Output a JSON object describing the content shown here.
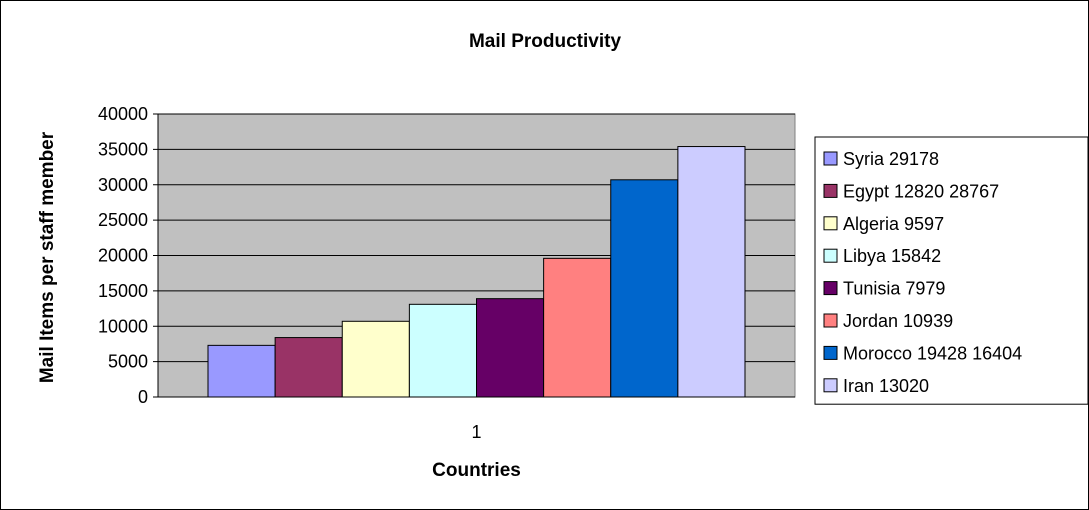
{
  "chart_data": {
    "type": "bar",
    "title": "Mail Productivity",
    "xlabel": "Countries",
    "ylabel": "Mail Items per staff member",
    "categories": [
      "1"
    ],
    "ylim": [
      0,
      40000
    ],
    "yticks": [
      0,
      5000,
      10000,
      15000,
      20000,
      25000,
      30000,
      35000,
      40000
    ],
    "grid": true,
    "legend_position": "right",
    "series": [
      {
        "name": "Syria 29178",
        "values": [
          7300
        ],
        "color": "#9999ff"
      },
      {
        "name": "Egypt 12820 28767",
        "values": [
          8400
        ],
        "color": "#993366"
      },
      {
        "name": "Algeria 9597",
        "values": [
          10700
        ],
        "color": "#ffffcc"
      },
      {
        "name": "Libya 15842",
        "values": [
          13100
        ],
        "color": "#ccffff"
      },
      {
        "name": "Tunisia 7979",
        "values": [
          13900
        ],
        "color": "#660066"
      },
      {
        "name": "Jordan 10939",
        "values": [
          19600
        ],
        "color": "#ff8080"
      },
      {
        "name": "Morocco 19428 16404",
        "values": [
          30700
        ],
        "color": "#0066cc"
      },
      {
        "name": "Iran 13020",
        "values": [
          35400
        ],
        "color": "#ccccff"
      }
    ]
  }
}
